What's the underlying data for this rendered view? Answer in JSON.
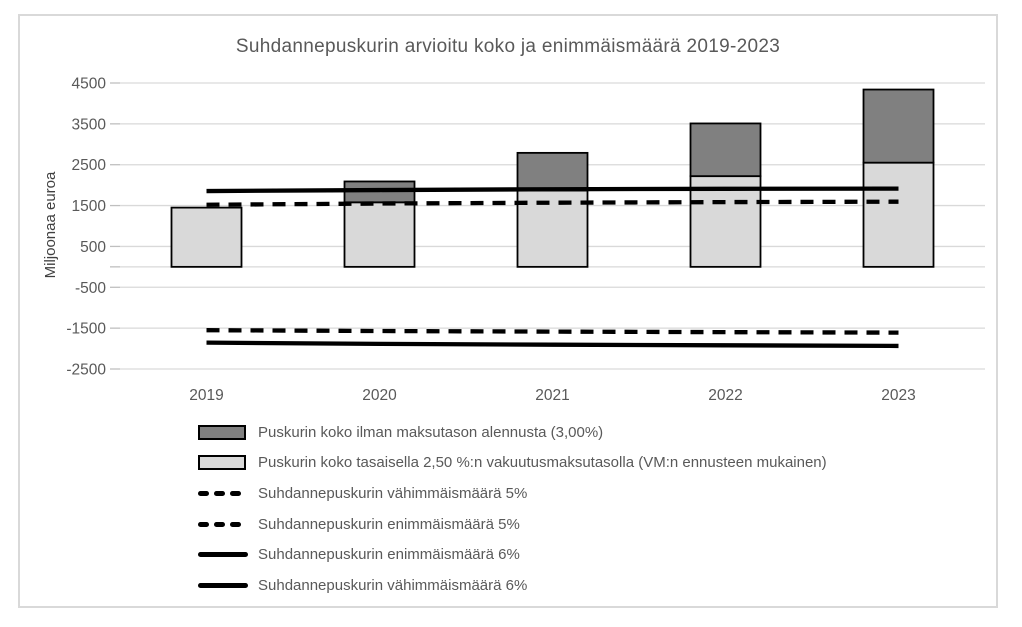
{
  "window": {
    "background": "#ffffff",
    "frame_border_color": "#d9d9d9"
  },
  "chart_data": {
    "type": "combo-bar-line",
    "title": "Suhdannepuskurin arvioitu koko ja enimmäismäärä 2019-2023",
    "xlabel": "",
    "ylabel": "Miljoonaa euroa",
    "categories": [
      "2019",
      "2020",
      "2021",
      "2022",
      "2023"
    ],
    "ylim": [
      -2500,
      4500
    ],
    "yticks": [
      4500,
      3500,
      2500,
      1500,
      500,
      -500,
      -1500,
      -2500
    ],
    "grid": true,
    "legend_position": "bottom-left",
    "bars": {
      "light": {
        "name": "Puskurin koko tasaisella 2,50 %:n vakuutusmaksutasolla (VM:n ennusteen mukainen)",
        "color": "#d9d9d9",
        "values": [
          1450,
          1580,
          1870,
          2220,
          2550
        ]
      },
      "dark_total": {
        "name": "Puskurin koko ilman maksutason alennusta (3,00%)",
        "color": "#808080",
        "values": [
          1450,
          2090,
          2790,
          3510,
          4340
        ]
      }
    },
    "lines": [
      {
        "name": "Suhdannepuskurin vähimmäismäärä 5%",
        "style": "dashed",
        "values": [
          -1550,
          -1570,
          -1585,
          -1598,
          -1610
        ]
      },
      {
        "name": "Suhdannepuskurin enimmäismäärä 5%",
        "style": "dashed",
        "values": [
          1520,
          1550,
          1570,
          1585,
          1595
        ]
      },
      {
        "name": "Suhdannepuskurin enimmäismäärä 6%",
        "style": "solid",
        "values": [
          1855,
          1880,
          1900,
          1910,
          1915
        ]
      },
      {
        "name": "Suhdannepuskurin vähimmäismäärä 6%",
        "style": "solid",
        "values": [
          -1855,
          -1885,
          -1905,
          -1920,
          -1935
        ]
      }
    ],
    "legend": [
      {
        "label": "Puskurin koko ilman maksutason alennusta (3,00%)",
        "swatch": "bar-dark"
      },
      {
        "label": "Puskurin koko tasaisella 2,50 %:n vakuutusmaksutasolla (VM:n ennusteen mukainen)",
        "swatch": "bar-light"
      },
      {
        "label": "Suhdannepuskurin vähimmäismäärä 5%",
        "swatch": "dashed"
      },
      {
        "label": "Suhdannepuskurin enimmäismäärä 5%",
        "swatch": "dashed"
      },
      {
        "label": "Suhdannepuskurin enimmäismäärä 6%",
        "swatch": "solid"
      },
      {
        "label": "Suhdannepuskurin vähimmäismäärä 6%",
        "swatch": "solid"
      }
    ],
    "colors": {
      "bar_light": "#d9d9d9",
      "bar_dark": "#808080",
      "bar_border": "#000000",
      "line": "#000000",
      "grid": "#d9d9d9",
      "tick": "#bfbfbf",
      "axis_text": "#595959"
    }
  }
}
